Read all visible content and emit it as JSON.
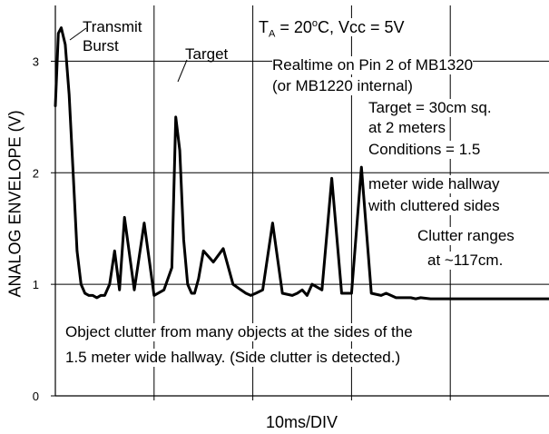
{
  "chart_data": {
    "type": "line",
    "xlabel": "10ms/DIV",
    "ylabel": "ANALOG ENVELOPE (V)",
    "ylim": [
      0,
      3.5
    ],
    "yticks": [
      "0",
      "1",
      "2",
      "3"
    ],
    "xlim": [
      0,
      50
    ],
    "grid": true,
    "series": [
      {
        "x": [
          0,
          0.3,
          0.6,
          1,
          1.4,
          1.8,
          2.2,
          2.6,
          3.0,
          3.4,
          3.8,
          4.2,
          4.6,
          5.0,
          5.5,
          6.0,
          6.5,
          7,
          8,
          9,
          10,
          11,
          11.8,
          12.2,
          12.6,
          13.0,
          13.4,
          13.8,
          14.1,
          14.5,
          15,
          16,
          17,
          18,
          18.8,
          19.3,
          19.8,
          20.3,
          21,
          22,
          23,
          24,
          24.5,
          25,
          25.5,
          26,
          27,
          28,
          29,
          30,
          31,
          32,
          33,
          33.5,
          34,
          34.5,
          35,
          36,
          36.5,
          37,
          38,
          40,
          42,
          44,
          46,
          48,
          50
        ],
        "y": [
          2.6,
          3.25,
          3.3,
          3.15,
          2.7,
          2.0,
          1.3,
          1.0,
          0.92,
          0.9,
          0.9,
          0.88,
          0.9,
          0.9,
          1.0,
          1.3,
          0.95,
          1.6,
          0.95,
          1.55,
          0.9,
          0.95,
          1.15,
          2.5,
          2.2,
          1.4,
          1.0,
          0.92,
          0.92,
          1.05,
          1.3,
          1.2,
          1.32,
          1.0,
          0.95,
          0.92,
          0.9,
          0.92,
          0.95,
          1.55,
          0.92,
          0.9,
          0.92,
          0.95,
          0.9,
          1.0,
          0.95,
          1.95,
          0.92,
          0.92,
          2.05,
          0.92,
          0.9,
          0.92,
          0.9,
          0.88,
          0.88,
          0.88,
          0.87,
          0.88,
          0.87,
          0.87,
          0.87,
          0.87,
          0.87,
          0.87,
          0.87
        ]
      }
    ]
  },
  "annotations": {
    "transmit_burst": "Transmit\nBurst",
    "target_label": "Target",
    "conditions_line1_prefix": "T",
    "conditions_line1_sub": "A",
    "conditions_line1_mid": " = 20",
    "conditions_line1_sup": "o",
    "conditions_line1_suffix": "C, Vcc = 5V",
    "realtime_line1": "Realtime on Pin 2 of MB1320",
    "realtime_line2": "(or MB1220 internal)",
    "target_desc_1": "Target = 30cm sq.",
    "target_desc_2": "at 2 meters",
    "conditions_1": "Conditions = 1.5",
    "conditions_2": "meter wide hallway",
    "conditions_3": "with cluttered sides",
    "clutter_1": "Clutter ranges",
    "clutter_2": "at ~117cm.",
    "object_clutter_1": "Object clutter from many objects at the sides of the",
    "object_clutter_2": "1.5 meter wide hallway.  (Side clutter is detected.)"
  }
}
